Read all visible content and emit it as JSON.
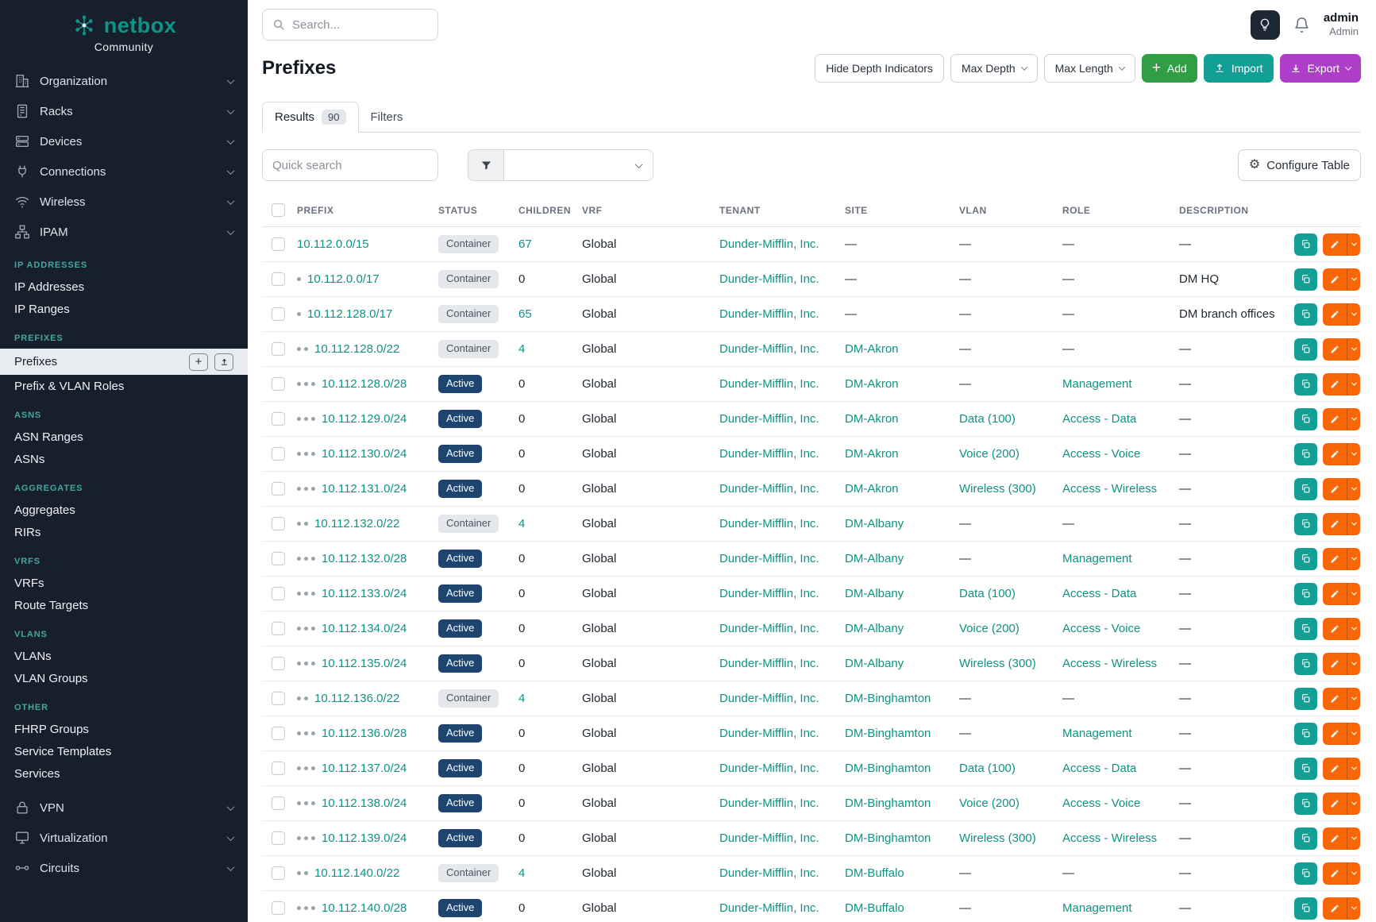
{
  "colors": {
    "accent_teal": "#0e9384",
    "add_green": "#2f9e44",
    "import_teal": "#12a096",
    "export_purple": "#ae3ec9",
    "edit_orange": "#f76707",
    "active_badge": "#1e4470"
  },
  "glyphs": {
    "plus": "+",
    "gear": "⚙"
  },
  "brand": {
    "name": "netbox",
    "edition": "Community"
  },
  "sidebar": {
    "menu": [
      {
        "label": "Organization"
      },
      {
        "label": "Racks"
      },
      {
        "label": "Devices"
      },
      {
        "label": "Connections"
      },
      {
        "label": "Wireless"
      },
      {
        "label": "IPAM"
      }
    ],
    "active_item": "Prefixes",
    "sections": [
      {
        "header": "IP ADDRESSES",
        "items": [
          "IP Addresses",
          "IP Ranges"
        ]
      },
      {
        "header": "PREFIXES",
        "items": [
          "Prefixes",
          "Prefix & VLAN Roles"
        ]
      },
      {
        "header": "ASNS",
        "items": [
          "ASN Ranges",
          "ASNs"
        ]
      },
      {
        "header": "AGGREGATES",
        "items": [
          "Aggregates",
          "RIRs"
        ]
      },
      {
        "header": "VRFS",
        "items": [
          "VRFs",
          "Route Targets"
        ]
      },
      {
        "header": "VLANS",
        "items": [
          "VLANs",
          "VLAN Groups"
        ]
      },
      {
        "header": "OTHER",
        "items": [
          "FHRP Groups",
          "Service Templates",
          "Services"
        ]
      }
    ],
    "bottom_menu": [
      {
        "label": "VPN"
      },
      {
        "label": "Virtualization"
      },
      {
        "label": "Circuits"
      }
    ]
  },
  "topbar": {
    "search_placeholder": "Search...",
    "user_name": "admin",
    "user_role": "Admin"
  },
  "page": {
    "title": "Prefixes",
    "toolbar": {
      "hide_depth": "Hide Depth Indicators",
      "max_depth": "Max Depth",
      "max_length": "Max Length",
      "add": "Add",
      "import": "Import",
      "export": "Export"
    },
    "tabs": [
      {
        "label": "Results",
        "badge": "90",
        "active": true
      },
      {
        "label": "Filters"
      }
    ],
    "filter_bar": {
      "quick_search_placeholder": "Quick search",
      "configure_table": "Configure Table"
    }
  },
  "table": {
    "columns": [
      "",
      "PREFIX",
      "STATUS",
      "CHILDREN",
      "VRF",
      "TENANT",
      "SITE",
      "VLAN",
      "ROLE",
      "DESCRIPTION",
      ""
    ],
    "empty_value": "—",
    "rows": [
      {
        "depth": 0,
        "prefix": "10.112.0.0/15",
        "status": "Container",
        "children": "67",
        "vrf": "Global",
        "tenant": "Dunder-Mifflin, Inc.",
        "site": "—",
        "vlan": "—",
        "role": "—",
        "description": "—"
      },
      {
        "depth": 1,
        "prefix": "10.112.0.0/17",
        "status": "Container",
        "children": "0",
        "vrf": "Global",
        "tenant": "Dunder-Mifflin, Inc.",
        "site": "—",
        "vlan": "—",
        "role": "—",
        "description": "DM HQ"
      },
      {
        "depth": 1,
        "prefix": "10.112.128.0/17",
        "status": "Container",
        "children": "65",
        "vrf": "Global",
        "tenant": "Dunder-Mifflin, Inc.",
        "site": "—",
        "vlan": "—",
        "role": "—",
        "description": "DM branch offices"
      },
      {
        "depth": 2,
        "prefix": "10.112.128.0/22",
        "status": "Container",
        "children": "4",
        "vrf": "Global",
        "tenant": "Dunder-Mifflin, Inc.",
        "site": "DM-Akron",
        "vlan": "—",
        "role": "—",
        "description": "—"
      },
      {
        "depth": 3,
        "prefix": "10.112.128.0/28",
        "status": "Active",
        "children": "0",
        "vrf": "Global",
        "tenant": "Dunder-Mifflin, Inc.",
        "site": "DM-Akron",
        "vlan": "—",
        "role": "Management",
        "description": "—"
      },
      {
        "depth": 3,
        "prefix": "10.112.129.0/24",
        "status": "Active",
        "children": "0",
        "vrf": "Global",
        "tenant": "Dunder-Mifflin, Inc.",
        "site": "DM-Akron",
        "vlan": "Data (100)",
        "role": "Access - Data",
        "description": "—"
      },
      {
        "depth": 3,
        "prefix": "10.112.130.0/24",
        "status": "Active",
        "children": "0",
        "vrf": "Global",
        "tenant": "Dunder-Mifflin, Inc.",
        "site": "DM-Akron",
        "vlan": "Voice (200)",
        "role": "Access - Voice",
        "description": "—"
      },
      {
        "depth": 3,
        "prefix": "10.112.131.0/24",
        "status": "Active",
        "children": "0",
        "vrf": "Global",
        "tenant": "Dunder-Mifflin, Inc.",
        "site": "DM-Akron",
        "vlan": "Wireless (300)",
        "role": "Access - Wireless",
        "description": "—"
      },
      {
        "depth": 2,
        "prefix": "10.112.132.0/22",
        "status": "Container",
        "children": "4",
        "vrf": "Global",
        "tenant": "Dunder-Mifflin, Inc.",
        "site": "DM-Albany",
        "vlan": "—",
        "role": "—",
        "description": "—"
      },
      {
        "depth": 3,
        "prefix": "10.112.132.0/28",
        "status": "Active",
        "children": "0",
        "vrf": "Global",
        "tenant": "Dunder-Mifflin, Inc.",
        "site": "DM-Albany",
        "vlan": "—",
        "role": "Management",
        "description": "—"
      },
      {
        "depth": 3,
        "prefix": "10.112.133.0/24",
        "status": "Active",
        "children": "0",
        "vrf": "Global",
        "tenant": "Dunder-Mifflin, Inc.",
        "site": "DM-Albany",
        "vlan": "Data (100)",
        "role": "Access - Data",
        "description": "—"
      },
      {
        "depth": 3,
        "prefix": "10.112.134.0/24",
        "status": "Active",
        "children": "0",
        "vrf": "Global",
        "tenant": "Dunder-Mifflin, Inc.",
        "site": "DM-Albany",
        "vlan": "Voice (200)",
        "role": "Access - Voice",
        "description": "—"
      },
      {
        "depth": 3,
        "prefix": "10.112.135.0/24",
        "status": "Active",
        "children": "0",
        "vrf": "Global",
        "tenant": "Dunder-Mifflin, Inc.",
        "site": "DM-Albany",
        "vlan": "Wireless (300)",
        "role": "Access - Wireless",
        "description": "—"
      },
      {
        "depth": 2,
        "prefix": "10.112.136.0/22",
        "status": "Container",
        "children": "4",
        "vrf": "Global",
        "tenant": "Dunder-Mifflin, Inc.",
        "site": "DM-Binghamton",
        "vlan": "—",
        "role": "—",
        "description": "—"
      },
      {
        "depth": 3,
        "prefix": "10.112.136.0/28",
        "status": "Active",
        "children": "0",
        "vrf": "Global",
        "tenant": "Dunder-Mifflin, Inc.",
        "site": "DM-Binghamton",
        "vlan": "—",
        "role": "Management",
        "description": "—"
      },
      {
        "depth": 3,
        "prefix": "10.112.137.0/24",
        "status": "Active",
        "children": "0",
        "vrf": "Global",
        "tenant": "Dunder-Mifflin, Inc.",
        "site": "DM-Binghamton",
        "vlan": "Data (100)",
        "role": "Access - Data",
        "description": "—"
      },
      {
        "depth": 3,
        "prefix": "10.112.138.0/24",
        "status": "Active",
        "children": "0",
        "vrf": "Global",
        "tenant": "Dunder-Mifflin, Inc.",
        "site": "DM-Binghamton",
        "vlan": "Voice (200)",
        "role": "Access - Voice",
        "description": "—"
      },
      {
        "depth": 3,
        "prefix": "10.112.139.0/24",
        "status": "Active",
        "children": "0",
        "vrf": "Global",
        "tenant": "Dunder-Mifflin, Inc.",
        "site": "DM-Binghamton",
        "vlan": "Wireless (300)",
        "role": "Access - Wireless",
        "description": "—"
      },
      {
        "depth": 2,
        "prefix": "10.112.140.0/22",
        "status": "Container",
        "children": "4",
        "vrf": "Global",
        "tenant": "Dunder-Mifflin, Inc.",
        "site": "DM-Buffalo",
        "vlan": "—",
        "role": "—",
        "description": "—"
      },
      {
        "depth": 3,
        "prefix": "10.112.140.0/28",
        "status": "Active",
        "children": "0",
        "vrf": "Global",
        "tenant": "Dunder-Mifflin, Inc.",
        "site": "DM-Buffalo",
        "vlan": "—",
        "role": "Management",
        "description": "—"
      }
    ]
  }
}
